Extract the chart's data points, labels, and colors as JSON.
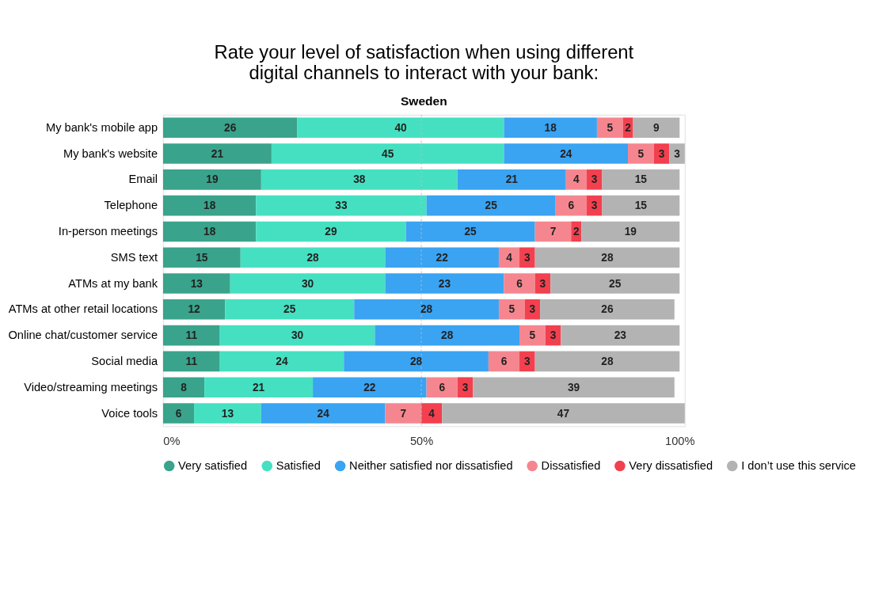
{
  "chart_data": {
    "type": "bar",
    "orientation": "horizontal",
    "stacked": true,
    "title": "Rate your level of satisfaction when using different digital channels to interact with your bank:",
    "subtitle": "Sweden",
    "categories": [
      "My bank's mobile app",
      "My bank's website",
      "Email",
      "Telephone",
      "In-person meetings",
      "SMS text",
      "ATMs at my bank",
      "ATMs at other retail locations",
      "Online chat/customer service",
      "Social media",
      "Video/streaming meetings",
      "Voice tools"
    ],
    "series": [
      {
        "name": "Very satisfied",
        "color": "#3aa38b",
        "values": [
          26,
          21,
          19,
          18,
          18,
          15,
          13,
          12,
          11,
          11,
          8,
          6
        ]
      },
      {
        "name": "Satisfied",
        "color": "#45e0c1",
        "values": [
          40,
          45,
          38,
          33,
          29,
          28,
          30,
          25,
          30,
          24,
          21,
          13
        ]
      },
      {
        "name": "Neither satisfied nor dissatisfied",
        "color": "#3aa3f2",
        "values": [
          18,
          24,
          21,
          25,
          25,
          22,
          23,
          28,
          28,
          28,
          22,
          24
        ]
      },
      {
        "name": "Dissatisfied",
        "color": "#f5868f",
        "values": [
          5,
          5,
          4,
          6,
          7,
          4,
          6,
          5,
          5,
          6,
          6,
          7
        ]
      },
      {
        "name": "Very dissatisfied",
        "color": "#f2404f",
        "values": [
          2,
          3,
          3,
          3,
          2,
          3,
          3,
          3,
          3,
          3,
          3,
          4
        ]
      },
      {
        "name": "I don’t use this service",
        "color": "#b3b3b3",
        "values": [
          9,
          3,
          15,
          15,
          19,
          28,
          25,
          26,
          23,
          28,
          39,
          47
        ]
      }
    ],
    "xlim": [
      0,
      101
    ],
    "xticks": [
      {
        "value": 0,
        "label": "0%"
      },
      {
        "value": 50,
        "label": "50%"
      },
      {
        "value": 100,
        "label": "100%"
      }
    ],
    "ref_lines": [
      {
        "axis": "x",
        "value": 50,
        "color": "#bbbbbb",
        "line_style": "dashed"
      }
    ],
    "data_labels": true,
    "legend": "bottom",
    "grid": false
  }
}
